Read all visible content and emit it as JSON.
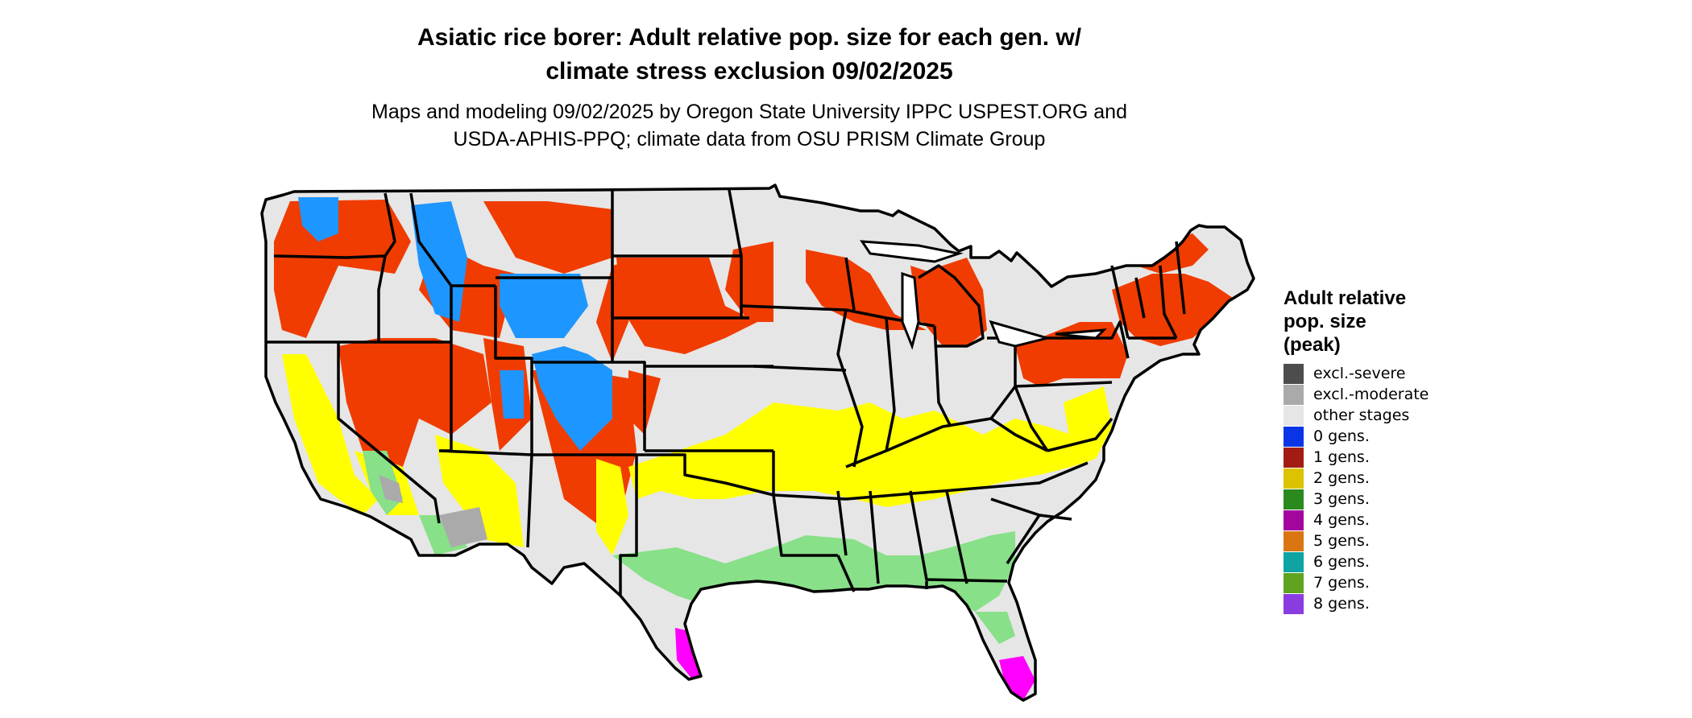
{
  "title": {
    "line1": "Asiatic rice borer: Adult relative pop. size for each gen. w/",
    "line2": "climate stress exclusion 09/02/2025"
  },
  "subtitle": {
    "line1": "Maps and modeling 09/02/2025 by Oregon State University IPPC USPEST.ORG and",
    "line2": "USDA-APHIS-PPQ; climate data from OSU PRISM Climate Group"
  },
  "legend": {
    "title_lines": [
      "Adult relative",
      "pop. size",
      "(peak)"
    ],
    "items": [
      {
        "label": "excl.-severe",
        "color": "#4d4d4d"
      },
      {
        "label": "excl.-moderate",
        "color": "#aaaaaa"
      },
      {
        "label": "other stages",
        "color": "#e6e6e6"
      },
      {
        "label": "0 gens.",
        "color": "#0a35e6"
      },
      {
        "label": "1 gens.",
        "color": "#a31c14"
      },
      {
        "label": "2 gens.",
        "color": "#dcc300"
      },
      {
        "label": "3 gens.",
        "color": "#2a8a1e"
      },
      {
        "label": "4 gens.",
        "color": "#a3069e"
      },
      {
        "label": "5 gens.",
        "color": "#d97612"
      },
      {
        "label": "6 gens.",
        "color": "#10a3a3"
      },
      {
        "label": "7 gens.",
        "color": "#5fa320"
      },
      {
        "label": "8 gens.",
        "color": "#8a3ce0"
      }
    ]
  },
  "map_colors": {
    "background": "#e6e6e6",
    "one_gen": "#f03c00",
    "two_gen": "#ffff00",
    "three_gen": "#88e088",
    "zero_gen": "#1e96ff",
    "four_gen": "#ff00ff",
    "excluded": "#aaaaaa",
    "border": "#000000"
  }
}
